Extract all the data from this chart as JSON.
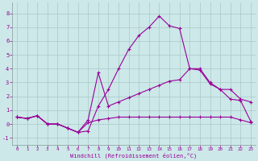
{
  "xlabel": "Windchill (Refroidissement éolien,°C)",
  "bg_color": "#cce8e8",
  "grid_color": "#aac8c8",
  "line_color": "#990099",
  "xlim": [
    -0.5,
    23.5
  ],
  "ylim": [
    -1.5,
    8.8
  ],
  "xticks": [
    0,
    1,
    2,
    3,
    4,
    5,
    6,
    7,
    8,
    9,
    10,
    11,
    12,
    13,
    14,
    15,
    16,
    17,
    18,
    19,
    20,
    21,
    22,
    23
  ],
  "yticks": [
    -1,
    0,
    1,
    2,
    3,
    4,
    5,
    6,
    7,
    8
  ],
  "series1_x": [
    0,
    1,
    2,
    3,
    4,
    5,
    6,
    7,
    8,
    9,
    10,
    11,
    12,
    13,
    14,
    15,
    16,
    17,
    18,
    19,
    20,
    21,
    22,
    23
  ],
  "series1_y": [
    0.5,
    0.4,
    0.6,
    0.0,
    0.0,
    -0.3,
    -0.6,
    -0.5,
    1.3,
    2.5,
    4.0,
    5.4,
    6.4,
    7.0,
    7.8,
    7.1,
    6.9,
    4.0,
    4.0,
    3.0,
    2.5,
    1.8,
    1.7,
    0.2
  ],
  "series2_x": [
    0,
    1,
    2,
    3,
    4,
    5,
    6,
    7,
    8,
    9,
    10,
    11,
    12,
    13,
    14,
    15,
    16,
    17,
    18,
    19,
    20,
    21,
    22,
    23
  ],
  "series2_y": [
    0.5,
    0.4,
    0.6,
    0.0,
    0.0,
    -0.3,
    -0.6,
    0.3,
    3.7,
    1.3,
    1.6,
    1.9,
    2.2,
    2.5,
    2.8,
    3.1,
    3.2,
    4.0,
    3.9,
    2.9,
    2.5,
    2.5,
    1.8,
    1.6
  ],
  "series3_x": [
    0,
    1,
    2,
    3,
    4,
    5,
    6,
    7,
    8,
    9,
    10,
    11,
    12,
    13,
    14,
    15,
    16,
    17,
    18,
    19,
    20,
    21,
    22,
    23
  ],
  "series3_y": [
    0.5,
    0.4,
    0.6,
    0.0,
    0.0,
    -0.3,
    -0.6,
    0.1,
    0.3,
    0.4,
    0.5,
    0.5,
    0.5,
    0.5,
    0.5,
    0.5,
    0.5,
    0.5,
    0.5,
    0.5,
    0.5,
    0.5,
    0.3,
    0.1
  ]
}
